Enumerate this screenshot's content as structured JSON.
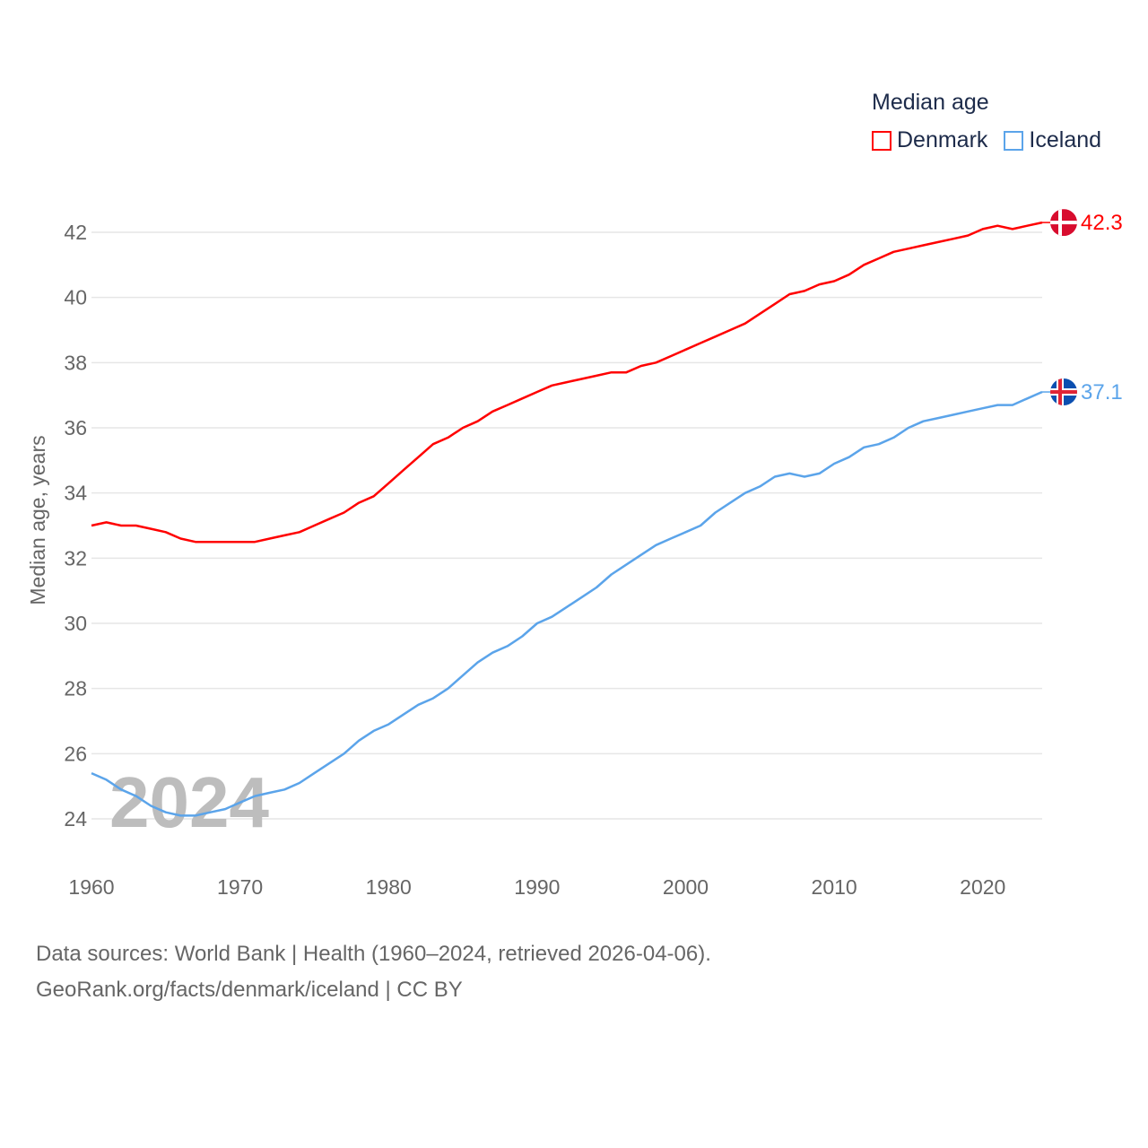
{
  "chart_data": {
    "type": "line",
    "title": "Median age",
    "xlabel": "",
    "ylabel": "Median age, years",
    "xlim": [
      1960,
      2024
    ],
    "ylim": [
      23,
      43
    ],
    "yticks": [
      24,
      26,
      28,
      30,
      32,
      34,
      36,
      38,
      40,
      42
    ],
    "xticks": [
      1960,
      1970,
      1980,
      1990,
      2000,
      2010,
      2020
    ],
    "grid": true,
    "legend_placement": "top-right",
    "watermark_year": "2024",
    "x": [
      1960,
      1961,
      1962,
      1963,
      1964,
      1965,
      1966,
      1967,
      1968,
      1969,
      1970,
      1971,
      1972,
      1973,
      1974,
      1975,
      1976,
      1977,
      1978,
      1979,
      1980,
      1981,
      1982,
      1983,
      1984,
      1985,
      1986,
      1987,
      1988,
      1989,
      1990,
      1991,
      1992,
      1993,
      1994,
      1995,
      1996,
      1997,
      1998,
      1999,
      2000,
      2001,
      2002,
      2003,
      2004,
      2005,
      2006,
      2007,
      2008,
      2009,
      2010,
      2011,
      2012,
      2013,
      2014,
      2015,
      2016,
      2017,
      2018,
      2019,
      2020,
      2021,
      2022,
      2023,
      2024
    ],
    "series": [
      {
        "name": "Denmark",
        "color": "#ff0000",
        "end_label": "42.3",
        "values": [
          33.0,
          33.1,
          33.0,
          33.0,
          32.9,
          32.8,
          32.6,
          32.5,
          32.5,
          32.5,
          32.5,
          32.5,
          32.6,
          32.7,
          32.8,
          33.0,
          33.2,
          33.4,
          33.7,
          33.9,
          34.3,
          34.7,
          35.1,
          35.5,
          35.7,
          36.0,
          36.2,
          36.5,
          36.7,
          36.9,
          37.1,
          37.3,
          37.4,
          37.5,
          37.6,
          37.7,
          37.7,
          37.9,
          38.0,
          38.2,
          38.4,
          38.6,
          38.8,
          39.0,
          39.2,
          39.5,
          39.8,
          40.1,
          40.2,
          40.4,
          40.5,
          40.7,
          41.0,
          41.2,
          41.4,
          41.5,
          41.6,
          41.7,
          41.8,
          41.9,
          42.1,
          42.2,
          42.1,
          42.2,
          42.3
        ]
      },
      {
        "name": "Iceland",
        "color": "#5ba4ea",
        "end_label": "37.1",
        "values": [
          25.4,
          25.2,
          24.9,
          24.7,
          24.4,
          24.2,
          24.1,
          24.1,
          24.2,
          24.3,
          24.5,
          24.7,
          24.8,
          24.9,
          25.1,
          25.4,
          25.7,
          26.0,
          26.4,
          26.7,
          26.9,
          27.2,
          27.5,
          27.7,
          28.0,
          28.4,
          28.8,
          29.1,
          29.3,
          29.6,
          30.0,
          30.2,
          30.5,
          30.8,
          31.1,
          31.5,
          31.8,
          32.1,
          32.4,
          32.6,
          32.8,
          33.0,
          33.4,
          33.7,
          34.0,
          34.2,
          34.5,
          34.6,
          34.5,
          34.6,
          34.9,
          35.1,
          35.4,
          35.5,
          35.7,
          36.0,
          36.2,
          36.3,
          36.4,
          36.5,
          36.6,
          36.7,
          36.7,
          36.9,
          37.1
        ]
      }
    ]
  },
  "footer": {
    "line1": "Data sources: World Bank | Health (1960–2024, retrieved 2026-04-06).",
    "line2": "GeoRank.org/facts/denmark/iceland | CC BY"
  }
}
